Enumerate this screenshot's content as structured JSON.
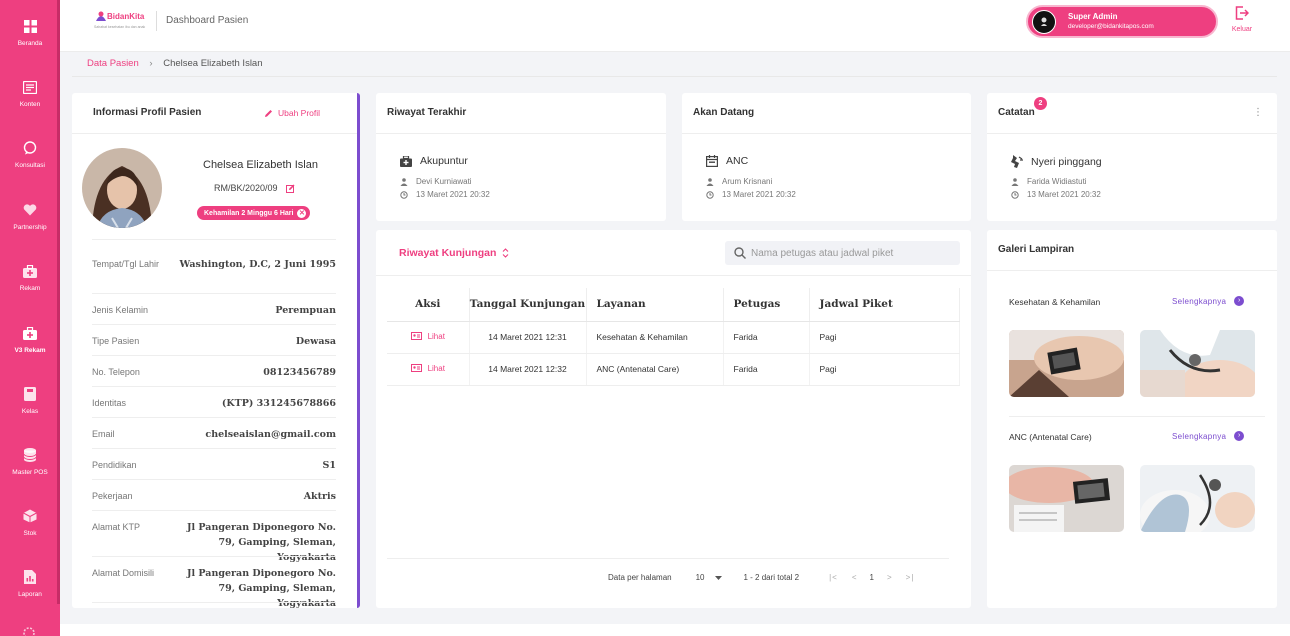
{
  "sidebar": {
    "items": [
      {
        "label": "Beranda",
        "icon": "grid-icon"
      },
      {
        "label": "Konten",
        "icon": "newspaper-icon"
      },
      {
        "label": "Konsultasi",
        "icon": "chat-icon"
      },
      {
        "label": "Partnership",
        "icon": "heart-icon"
      },
      {
        "label": "Rekam",
        "icon": "medkit-icon"
      },
      {
        "label": "V3 Rekam",
        "icon": "medkit-icon"
      },
      {
        "label": "Kelas",
        "icon": "book-icon"
      },
      {
        "label": "Master POS",
        "icon": "database-icon"
      },
      {
        "label": "Stok",
        "icon": "box-icon"
      },
      {
        "label": "Laporan",
        "icon": "report-icon"
      }
    ]
  },
  "header": {
    "brand": "BidanKita",
    "tagline": "Sahabat kesehatan ibu dan anak",
    "title": "Dashboard Pasien",
    "user_name": "Super Admin",
    "user_email": "developer@bidankitapos.com",
    "logout_label": "Keluar"
  },
  "breadcrumb": {
    "parent": "Data Pasien",
    "separator": "›",
    "current": "Chelsea Elizabeth Islan"
  },
  "profile": {
    "title": "Informasi Profil Pasien",
    "edit_label": "Ubah Profil",
    "name": "Chelsea Elizabeth Islan",
    "rm": "RM/BK/2020/09",
    "pregnancy_badge": "Kehamilan 2 Minggu 6 Hari",
    "rows": [
      {
        "label": "Tempat/Tgl Lahir",
        "value": "Washington, D.C, 2 Juni 1995"
      },
      {
        "label": "Jenis Kelamin",
        "value": "Perempuan"
      },
      {
        "label": "Tipe Pasien",
        "value": "Dewasa"
      },
      {
        "label": "No. Telepon",
        "value": "08123456789"
      },
      {
        "label": "Identitas",
        "value": "(KTP) 331245678866"
      },
      {
        "label": "Email",
        "value": "chelseaislan@gmail.com"
      },
      {
        "label": "Pendidikan",
        "value": "S1"
      },
      {
        "label": "Pekerjaan",
        "value": "Aktris"
      },
      {
        "label": "Alamat KTP",
        "value": "Jl Pangeran Diponegoro No. 79, Gamping, Sleman, Yogyakarta"
      },
      {
        "label": "Alamat Domisili",
        "value": "Jl Pangeran Diponegoro No. 79, Gamping, Sleman, Yogyakarta"
      }
    ]
  },
  "last_history": {
    "title": "Riwayat Terakhir",
    "service": "Akupuntur",
    "staff": "Devi Kurniawati",
    "datetime": "13 Maret 2021 20:32"
  },
  "upcoming": {
    "title": "Akan Datang",
    "service": "ANC",
    "staff": "Arum Krisnani",
    "datetime": "13 Maret 2021 20:32"
  },
  "notes": {
    "title": "Catatan",
    "count": "2",
    "item": "Nyeri pinggang",
    "staff": "Farida Widiastuti",
    "datetime": "13 Maret 2021 20:32"
  },
  "visits": {
    "title": "Riwayat Kunjungan",
    "search_placeholder": "Nama petugas atau jadwal piket",
    "columns": [
      "Aksi",
      "Tanggal Kunjungan",
      "Layanan",
      "Petugas",
      "Jadwal Piket"
    ],
    "rows": [
      {
        "action": "Lihat",
        "date": "14 Maret 2021 12:31",
        "service": "Kesehatan & Kehamilan",
        "staff": "Farida",
        "shift": "Pagi"
      },
      {
        "action": "Lihat",
        "date": "14 Maret 2021 12:32",
        "service": "ANC (Antenatal Care)",
        "staff": "Farida",
        "shift": "Pagi"
      }
    ],
    "pager": {
      "per_page_label": "Data per halaman",
      "per_page": "10",
      "range": "1 - 2 dari total 2",
      "page": "1"
    }
  },
  "gallery": {
    "title": "Galeri Lampiran",
    "more_label": "Selengkapnya",
    "sections": [
      {
        "name": "Kesehatan & Kehamilan"
      },
      {
        "name": "ANC (Antenatal Care)"
      }
    ]
  },
  "colors": {
    "primary": "#ee3f80",
    "accent": "#7c4dcf",
    "background": "#f3f4f7"
  }
}
